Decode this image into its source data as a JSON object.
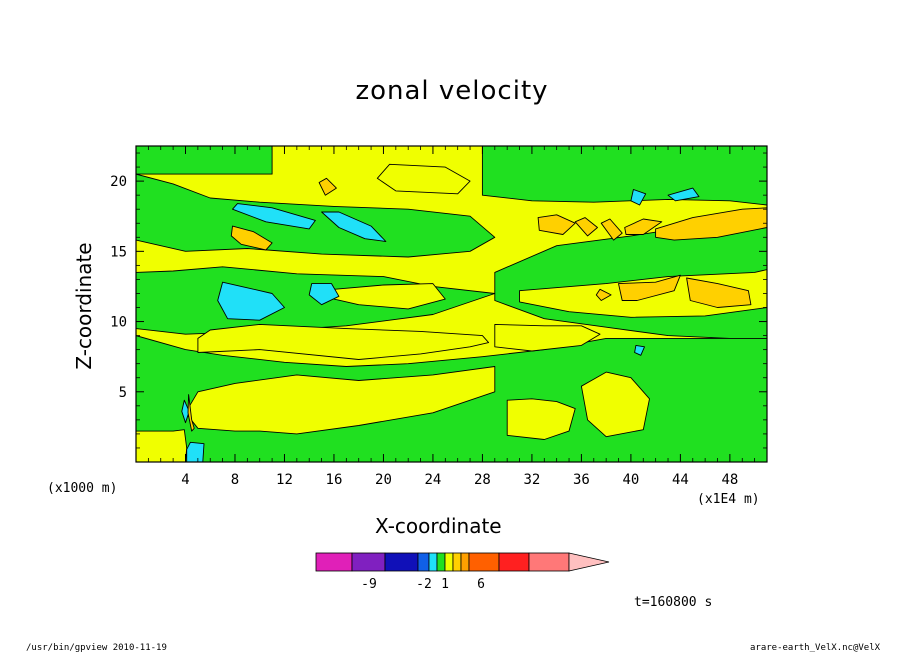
{
  "chart_data": {
    "type": "heatmap",
    "title": "zonal velocity",
    "xlabel": "X-coordinate",
    "ylabel": "Z-coordinate",
    "x_unit": "(x1E4 m)",
    "y_unit": "(x1000 m)",
    "xlim": [
      0,
      51
    ],
    "ylim": [
      0,
      22.5
    ],
    "x_ticks": [
      4,
      8,
      12,
      16,
      20,
      24,
      28,
      32,
      36,
      40,
      44,
      48
    ],
    "y_ticks": [
      5,
      10,
      15,
      20
    ],
    "colorbar": {
      "colors": [
        "#e020b8",
        "#8020c0",
        "#1010b8",
        "#1060e8",
        "#20e0f8",
        "#20e020",
        "#f0ff00",
        "#ffd000",
        "#ffa000",
        "#ff6000",
        "#ff2020",
        "#ff7878",
        "#ffc0c0"
      ],
      "labels": [
        "-9",
        "-2",
        "1",
        "6"
      ]
    },
    "background_color": "#f0ff00",
    "regions": [
      {
        "level": "green",
        "color": "#20e020",
        "polygons": [
          [
            [
              0,
              22.5
            ],
            [
              11,
              22.5
            ],
            [
              11,
              20.5
            ],
            [
              0,
              20.5
            ]
          ],
          [
            [
              0,
              20.5
            ],
            [
              3,
              19.8
            ],
            [
              6,
              18.8
            ],
            [
              10,
              18.5
            ],
            [
              16,
              18.2
            ],
            [
              22,
              18
            ],
            [
              27,
              17.5
            ],
            [
              29,
              16
            ],
            [
              27,
              15
            ],
            [
              22,
              14.6
            ],
            [
              15,
              14.8
            ],
            [
              9,
              15.2
            ],
            [
              4,
              15
            ],
            [
              0,
              15.8
            ]
          ],
          [
            [
              28,
              22.5
            ],
            [
              51,
              22.5
            ],
            [
              51,
              18.3
            ],
            [
              48,
              18.6
            ],
            [
              43,
              18.7
            ],
            [
              37,
              18.5
            ],
            [
              32,
              18.6
            ],
            [
              28,
              19
            ]
          ],
          [
            [
              0,
              13.5
            ],
            [
              3,
              13.6
            ],
            [
              7,
              13.9
            ],
            [
              13,
              13.4
            ],
            [
              20,
              13.2
            ],
            [
              24,
              12.5
            ],
            [
              29,
              12
            ],
            [
              24,
              10.5
            ],
            [
              17,
              9.7
            ],
            [
              10,
              9.3
            ],
            [
              4,
              9.1
            ],
            [
              0,
              9.5
            ]
          ],
          [
            [
              51,
              17.8
            ],
            [
              46,
              16.9
            ],
            [
              40,
              16.1
            ],
            [
              34,
              15.4
            ],
            [
              29,
              13.5
            ],
            [
              29,
              11.5
            ],
            [
              33,
              10.2
            ],
            [
              38,
              9.6
            ],
            [
              43,
              9
            ],
            [
              48,
              8.8
            ],
            [
              51,
              8.8
            ]
          ],
          [
            [
              0,
              9
            ],
            [
              4,
              8
            ],
            [
              7,
              7.6
            ],
            [
              12,
              7.1
            ],
            [
              17,
              6.8
            ],
            [
              22,
              7
            ],
            [
              28,
              7.5
            ],
            [
              33,
              8
            ],
            [
              38,
              8.8
            ],
            [
              44,
              8.8
            ],
            [
              51,
              8.8
            ],
            [
              51,
              0
            ],
            [
              0,
              0
            ]
          ]
        ]
      },
      {
        "level": "yellow",
        "color": "#f0ff00",
        "polygons": [
          [
            [
              5,
              7.8
            ],
            [
              10,
              8
            ],
            [
              18,
              7.3
            ],
            [
              23,
              7.7
            ],
            [
              27,
              8.2
            ],
            [
              28.5,
              8.5
            ],
            [
              28,
              9
            ],
            [
              23,
              9.3
            ],
            [
              17,
              9.5
            ],
            [
              10,
              9.8
            ],
            [
              6,
              9.4
            ],
            [
              5,
              8.8
            ]
          ],
          [
            [
              13,
              6.2
            ],
            [
              18,
              5.8
            ],
            [
              24,
              6.2
            ],
            [
              29,
              6.8
            ],
            [
              29,
              5
            ],
            [
              24,
              3.5
            ],
            [
              18,
              2.6
            ],
            [
              13,
              2
            ],
            [
              10,
              2.2
            ],
            [
              8,
              2.2
            ],
            [
              5,
              2.4
            ],
            [
              4,
              3.5
            ],
            [
              5,
              5
            ],
            [
              8,
              5.6
            ]
          ],
          [
            [
              0,
              2.2
            ],
            [
              3,
              2.2
            ],
            [
              3.9,
              2.3
            ],
            [
              4.1,
              1
            ],
            [
              4,
              0
            ],
            [
              0,
              0
            ]
          ],
          [
            [
              16,
              12.3
            ],
            [
              20,
              12.6
            ],
            [
              24,
              12.7
            ],
            [
              25,
              11.6
            ],
            [
              22,
              10.9
            ],
            [
              18,
              11.2
            ],
            [
              16,
              11.6
            ]
          ],
          [
            [
              29,
              9.8
            ],
            [
              33,
              9.7
            ],
            [
              36,
              9.7
            ],
            [
              37.5,
              9.1
            ],
            [
              36,
              8.3
            ],
            [
              32,
              7.9
            ],
            [
              29,
              8.2
            ]
          ],
          [
            [
              31,
              12.2
            ],
            [
              38,
              12.7
            ],
            [
              43,
              13.2
            ],
            [
              50,
              13.5
            ],
            [
              51,
              13.7
            ],
            [
              51,
              11
            ],
            [
              46,
              10.4
            ],
            [
              40,
              10.3
            ],
            [
              35,
              10.7
            ],
            [
              31,
              11.4
            ]
          ],
          [
            [
              30,
              4.4
            ],
            [
              32,
              4.5
            ],
            [
              34,
              4.3
            ],
            [
              35.5,
              3.8
            ],
            [
              35,
              2.2
            ],
            [
              33,
              1.6
            ],
            [
              30,
              1.9
            ]
          ],
          [
            [
              36,
              5.4
            ],
            [
              38,
              6.4
            ],
            [
              40,
              6
            ],
            [
              41.5,
              4.5
            ],
            [
              41,
              2.3
            ],
            [
              38,
              1.8
            ],
            [
              36.5,
              3
            ]
          ],
          [
            [
              20.5,
              21.2
            ],
            [
              25,
              21
            ],
            [
              27,
              20
            ],
            [
              26,
              19.1
            ],
            [
              21,
              19.3
            ],
            [
              19.5,
              20.2
            ]
          ]
        ]
      },
      {
        "level": "cyan",
        "color": "#20e0f8",
        "polygons": [
          [
            [
              7.8,
              18
            ],
            [
              10.5,
              17.1
            ],
            [
              14,
              16.6
            ],
            [
              14.5,
              17.2
            ],
            [
              11,
              18.1
            ],
            [
              8.2,
              18.4
            ]
          ],
          [
            [
              15,
              17.8
            ],
            [
              16.4,
              16.7
            ],
            [
              18.5,
              15.9
            ],
            [
              20.2,
              15.7
            ],
            [
              19,
              16.8
            ],
            [
              16.4,
              17.8
            ]
          ],
          [
            [
              7,
              12.8
            ],
            [
              8.5,
              12.5
            ],
            [
              11,
              12
            ],
            [
              12,
              11
            ],
            [
              10,
              10.1
            ],
            [
              7.4,
              10.2
            ],
            [
              6.6,
              11.5
            ]
          ],
          [
            [
              14.2,
              12.7
            ],
            [
              15.8,
              12.7
            ],
            [
              16.4,
              11.8
            ],
            [
              15,
              11.2
            ],
            [
              14,
              11.9
            ]
          ],
          [
            [
              40.2,
              19.4
            ],
            [
              41.2,
              19.1
            ],
            [
              40.7,
              18.3
            ],
            [
              40,
              18.6
            ]
          ],
          [
            [
              43,
              19
            ],
            [
              45,
              19.5
            ],
            [
              45.5,
              18.9
            ],
            [
              43.6,
              18.6
            ]
          ],
          [
            [
              40.4,
              8.3
            ],
            [
              41.1,
              8.2
            ],
            [
              40.8,
              7.6
            ],
            [
              40.3,
              7.8
            ]
          ],
          [
            [
              4.1,
              0.9
            ],
            [
              4.4,
              1.4
            ],
            [
              5.5,
              1.3
            ],
            [
              5.4,
              0
            ],
            [
              4.1,
              0
            ]
          ],
          [
            [
              3.7,
              3.6
            ],
            [
              3.9,
              4.4
            ],
            [
              4.3,
              3.6
            ],
            [
              4.0,
              2.8
            ]
          ]
        ]
      },
      {
        "level": "orange",
        "color": "#ffd000",
        "polygons": [
          [
            [
              7.8,
              16.8
            ],
            [
              9.5,
              16.4
            ],
            [
              11,
              15.6
            ],
            [
              10.5,
              15.1
            ],
            [
              8.5,
              15.5
            ],
            [
              7.7,
              16.1
            ]
          ],
          [
            [
              14.8,
              19.9
            ],
            [
              15.3,
              19
            ],
            [
              16.2,
              19.5
            ],
            [
              15.4,
              20.2
            ]
          ],
          [
            [
              32.5,
              17.4
            ],
            [
              34,
              17.6
            ],
            [
              35.5,
              17
            ],
            [
              34.5,
              16.2
            ],
            [
              32.6,
              16.5
            ]
          ],
          [
            [
              35.5,
              17.1
            ],
            [
              36.5,
              16.1
            ],
            [
              37.3,
              16.7
            ],
            [
              36.3,
              17.4
            ]
          ],
          [
            [
              37.6,
              17
            ],
            [
              38.6,
              15.8
            ],
            [
              39.3,
              16.3
            ],
            [
              38.3,
              17.3
            ]
          ],
          [
            [
              39.5,
              16.7
            ],
            [
              41,
              17.3
            ],
            [
              42.5,
              17.1
            ],
            [
              41,
              16.2
            ],
            [
              39.6,
              16.2
            ]
          ],
          [
            [
              42,
              16.6
            ],
            [
              45,
              17.4
            ],
            [
              49,
              18
            ],
            [
              51,
              18.1
            ],
            [
              51,
              16.7
            ],
            [
              47,
              16
            ],
            [
              43.5,
              15.8
            ],
            [
              42,
              16
            ]
          ],
          [
            [
              37.5,
              12.3
            ],
            [
              38.4,
              11.9
            ],
            [
              37.6,
              11.5
            ],
            [
              37.2,
              11.9
            ]
          ],
          [
            [
              39,
              12.7
            ],
            [
              42,
              12.8
            ],
            [
              44,
              13.3
            ],
            [
              43.5,
              12.2
            ],
            [
              40.5,
              11.5
            ],
            [
              39.3,
              11.5
            ]
          ],
          [
            [
              44.5,
              13.1
            ],
            [
              47,
              12.7
            ],
            [
              49.5,
              12.2
            ],
            [
              49.7,
              11.2
            ],
            [
              47,
              11
            ],
            [
              44.8,
              11.5
            ]
          ],
          [
            [
              4.25,
              4.8
            ],
            [
              4.5,
              3
            ],
            [
              4.7,
              2.4
            ],
            [
              4.5,
              2.2
            ],
            [
              4.2,
              3.5
            ]
          ]
        ]
      }
    ]
  },
  "labels": {
    "y_unit": "(x1000 m)",
    "x_unit": "(x1E4 m)",
    "time": "t=160800 s",
    "footer_left": "/usr/bin/gpview   2010-11-19",
    "footer_right": "arare-earth_VelX.nc@VelX"
  }
}
